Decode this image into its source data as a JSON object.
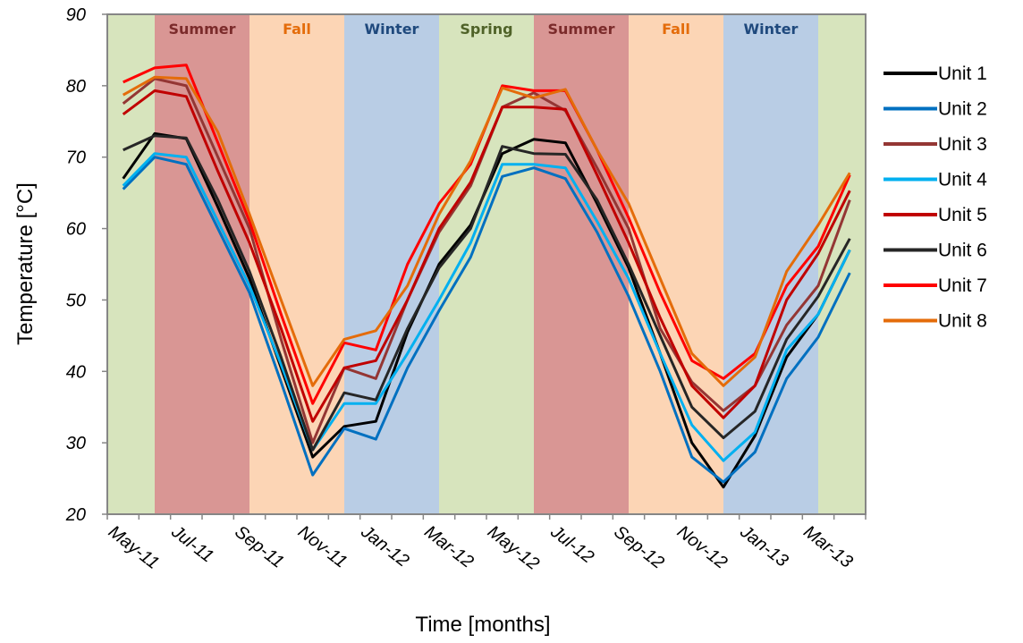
{
  "chart_data": {
    "type": "line",
    "xlabel": "Time [months]",
    "ylabel": "Temperature [°C]",
    "ylim": [
      20,
      90
    ],
    "yticks": [
      "20",
      "30",
      "40",
      "50",
      "60",
      "70",
      "80",
      "90"
    ],
    "x_tick_labels": [
      "May-11",
      "Jul-11",
      "Sep-11",
      "Nov-11",
      "Jan-12",
      "Mar-12",
      "May-12",
      "Jul-12",
      "Sep-12",
      "Nov-12",
      "Jan-13",
      "Mar-13"
    ],
    "x": [
      "May-11",
      "Jun-11",
      "Jul-11",
      "Aug-11",
      "Sep-11",
      "Oct-11",
      "Nov-11",
      "Dec-11",
      "Jan-12",
      "Feb-12",
      "Mar-12",
      "Apr-12",
      "May-12",
      "Jun-12",
      "Jul-12",
      "Aug-12",
      "Sep-12",
      "Oct-12",
      "Nov-12",
      "Dec-12",
      "Jan-13",
      "Feb-13",
      "Mar-13",
      "Apr-13"
    ],
    "seasons": [
      {
        "label": "",
        "from": "May-11",
        "to": "Jun-11",
        "color": "#d7e4bd"
      },
      {
        "label": "Summer",
        "from": "Jun-11",
        "to": "Sep-11",
        "color": "#d99694",
        "text_color": "#7b2b2b"
      },
      {
        "label": "Fall",
        "from": "Sep-11",
        "to": "Dec-11",
        "color": "#fcd5b5",
        "text_color": "#e46c0a"
      },
      {
        "label": "Winter",
        "from": "Dec-11",
        "to": "Mar-12",
        "color": "#b9cde5",
        "text_color": "#1f497d"
      },
      {
        "label": "Spring",
        "from": "Mar-12",
        "to": "Jun-12",
        "color": "#d7e4bd",
        "text_color": "#4f6228"
      },
      {
        "label": "Summer",
        "from": "Jun-12",
        "to": "Sep-12",
        "color": "#d99694",
        "text_color": "#7b2b2b"
      },
      {
        "label": "Fall",
        "from": "Sep-12",
        "to": "Dec-12",
        "color": "#fcd5b5",
        "text_color": "#e46c0a"
      },
      {
        "label": "Winter",
        "from": "Dec-12",
        "to": "Mar-13",
        "color": "#b9cde5",
        "text_color": "#1f497d"
      },
      {
        "label": "",
        "from": "Mar-13",
        "to": "Apr-13",
        "color": "#d7e4bd"
      }
    ],
    "series": [
      {
        "name": "Unit 1",
        "color": "#000000",
        "values": [
          67.0,
          73.3,
          72.6,
          63.0,
          53.0,
          40.5,
          28.0,
          32.3,
          33.0,
          45.5,
          55.0,
          60.5,
          70.5,
          72.5,
          72.0,
          63.5,
          54.5,
          42.5,
          30.0,
          23.8,
          31.0,
          42.0,
          48.0,
          57.0
        ]
      },
      {
        "name": "Unit 2",
        "color": "#0070c0",
        "values": [
          65.5,
          70.0,
          69.0,
          60.0,
          51.0,
          38.5,
          25.5,
          32.0,
          30.5,
          40.5,
          48.5,
          56.0,
          67.3,
          68.5,
          67.0,
          59.5,
          50.5,
          40.0,
          28.0,
          24.5,
          28.7,
          39.0,
          44.8,
          53.8
        ]
      },
      {
        "name": "Unit 3",
        "color": "#943634",
        "values": [
          77.5,
          81.0,
          80.0,
          70.0,
          60.0,
          44.5,
          30.0,
          40.5,
          39.0,
          50.0,
          59.5,
          66.0,
          77.0,
          79.0,
          76.5,
          68.5,
          60.0,
          46.0,
          38.5,
          34.5,
          38.0,
          46.5,
          52.0,
          64.0
        ]
      },
      {
        "name": "Unit 4",
        "color": "#00b0f0",
        "values": [
          66.0,
          70.5,
          70.0,
          61.0,
          52.0,
          41.0,
          29.0,
          35.5,
          35.5,
          42.5,
          50.0,
          58.0,
          69.0,
          69.0,
          68.5,
          61.0,
          53.0,
          42.5,
          32.5,
          27.5,
          31.5,
          43.0,
          48.0,
          57.0
        ]
      },
      {
        "name": "Unit 5",
        "color": "#c00000",
        "values": [
          76.0,
          79.3,
          78.5,
          68.0,
          58.0,
          46.0,
          33.0,
          40.5,
          41.5,
          50.0,
          60.0,
          66.5,
          77.0,
          77.0,
          76.7,
          67.5,
          58.0,
          47.5,
          38.0,
          33.5,
          38.0,
          50.0,
          56.5,
          65.3
        ]
      },
      {
        "name": "Unit 6",
        "color": "#262626",
        "values": [
          71.0,
          73.0,
          72.7,
          64.0,
          54.0,
          42.0,
          29.0,
          37.0,
          36.0,
          46.0,
          54.5,
          60.0,
          71.5,
          70.5,
          70.4,
          64.0,
          55.0,
          45.0,
          35.0,
          30.7,
          34.4,
          44.5,
          50.5,
          58.6
        ]
      },
      {
        "name": "Unit 7",
        "color": "#ff0000",
        "values": [
          80.5,
          82.5,
          82.9,
          72.0,
          61.0,
          48.0,
          35.5,
          44.0,
          43.0,
          55.0,
          63.5,
          69.0,
          80.0,
          79.3,
          79.3,
          71.0,
          61.5,
          51.0,
          41.5,
          39.0,
          42.5,
          52.0,
          57.5,
          67.5
        ]
      },
      {
        "name": "Unit 8",
        "color": "#e46c0a",
        "values": [
          78.7,
          81.2,
          81.0,
          73.5,
          62.0,
          50.0,
          38.0,
          44.5,
          45.7,
          52.0,
          62.0,
          69.5,
          79.7,
          78.3,
          79.5,
          71.0,
          63.5,
          53.0,
          42.5,
          38.0,
          42.0,
          54.0,
          60.5,
          67.8
        ]
      }
    ]
  }
}
